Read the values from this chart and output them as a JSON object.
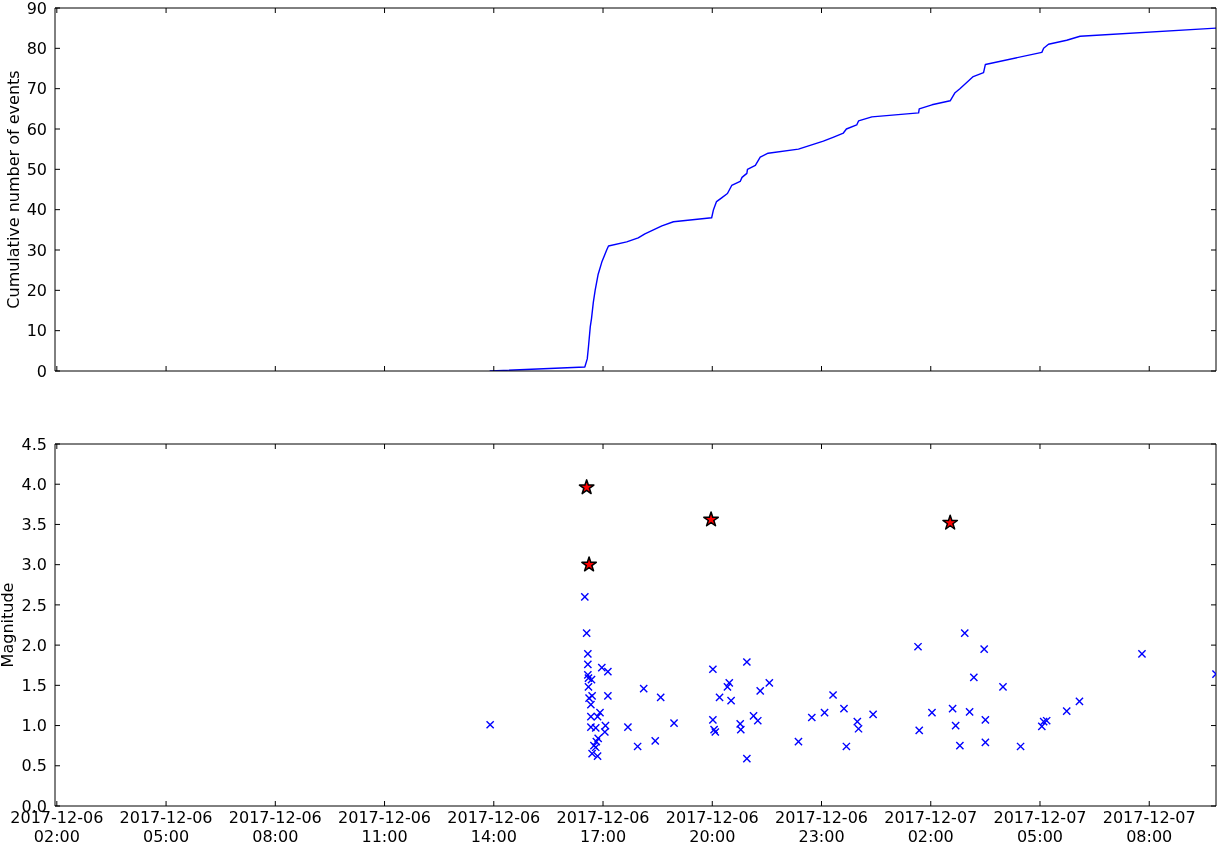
{
  "chart_data": [
    {
      "type": "line",
      "ylabel": "Cumulative number of events",
      "color": "#0000ff",
      "tick_labels": "y",
      "x": [
        "2017-12-06T13:54",
        "2017-12-06T16:30",
        "2017-12-06T16:34",
        "2017-12-06T16:36",
        "2017-12-06T16:39",
        "2017-12-06T16:41",
        "2017-12-06T16:44",
        "2017-12-06T16:47",
        "2017-12-06T16:52",
        "2017-12-06T16:58",
        "2017-12-06T17:06",
        "2017-12-06T17:09",
        "2017-12-06T17:39",
        "2017-12-06T17:58",
        "2017-12-06T18:09",
        "2017-12-06T18:23",
        "2017-12-06T18:37",
        "2017-12-06T18:56",
        "2017-12-06T19:59",
        "2017-12-06T20:02",
        "2017-12-06T20:07",
        "2017-12-06T20:16",
        "2017-12-06T20:25",
        "2017-12-06T20:32",
        "2017-12-06T20:46",
        "2017-12-06T20:49",
        "2017-12-06T20:57",
        "2017-12-06T20:58",
        "2017-12-06T21:11",
        "2017-12-06T21:19",
        "2017-12-06T21:32",
        "2017-12-06T22:22",
        "2017-12-06T23:03",
        "2017-12-06T23:20",
        "2017-12-06T23:36",
        "2017-12-06T23:41",
        "2017-12-06T23:58",
        "2017-12-07T00:01",
        "2017-12-07T00:23",
        "2017-12-07T01:40",
        "2017-12-07T01:41",
        "2017-12-07T02:02",
        "2017-12-07T02:32",
        "2017-12-07T02:40",
        "2017-12-07T02:48",
        "2017-12-07T03:10",
        "2017-12-07T03:27",
        "2017-12-07T03:30",
        "2017-12-07T05:03",
        "2017-12-07T05:06",
        "2017-12-07T05:14",
        "2017-12-07T05:44",
        "2017-12-07T06:06",
        "2017-12-07T09:50"
      ],
      "values": [
        0,
        1,
        3,
        6,
        11,
        13,
        17,
        20,
        24,
        27,
        30,
        31,
        32,
        33,
        34,
        35,
        36,
        37,
        38,
        40,
        42,
        43,
        44,
        46,
        47,
        48,
        49,
        50,
        51,
        53,
        54,
        55,
        57,
        58,
        59,
        60,
        61,
        62,
        63,
        64,
        65,
        66,
        67,
        69,
        70,
        73,
        74,
        76,
        79,
        80,
        81,
        82,
        83,
        85
      ],
      "xlim": [
        "2017-12-06T01:57",
        "2017-12-07T09:50"
      ],
      "xticks": [
        {
          "value": "2017-12-06T02:00",
          "label": null
        },
        {
          "value": "2017-12-06T05:00",
          "label": null
        },
        {
          "value": "2017-12-06T08:00",
          "label": null
        },
        {
          "value": "2017-12-06T11:00",
          "label": null
        },
        {
          "value": "2017-12-06T14:00",
          "label": null
        },
        {
          "value": "2017-12-06T17:00",
          "label": null
        },
        {
          "value": "2017-12-06T20:00",
          "label": null
        },
        {
          "value": "2017-12-06T23:00",
          "label": null
        },
        {
          "value": "2017-12-07T02:00",
          "label": null
        },
        {
          "value": "2017-12-07T05:00",
          "label": null
        },
        {
          "value": "2017-12-07T08:00",
          "label": null
        }
      ],
      "ylim": [
        0,
        90
      ],
      "yticks": [
        0,
        10,
        20,
        30,
        40,
        50,
        60,
        70,
        80,
        90
      ]
    },
    {
      "type": "scatter",
      "ylabel": "Magnitude",
      "series": [
        {
          "color": "#0000ff",
          "marker": "cross",
          "x": [
            "2017-12-06T13:54",
            "2017-12-06T16:30",
            "2017-12-06T16:33",
            "2017-12-06T16:35",
            "2017-12-06T16:35",
            "2017-12-06T16:35",
            "2017-12-06T16:36",
            "2017-12-06T16:36",
            "2017-12-06T16:37",
            "2017-12-06T16:40",
            "2017-12-06T16:40",
            "2017-12-06T16:40",
            "2017-12-06T16:41",
            "2017-12-06T16:42",
            "2017-12-06T16:42",
            "2017-12-06T16:45",
            "2017-12-06T16:48",
            "2017-12-06T16:48",
            "2017-12-06T16:49",
            "2017-12-06T16:51",
            "2017-12-06T16:51",
            "2017-12-06T16:52",
            "2017-12-06T16:55",
            "2017-12-06T16:58",
            "2017-12-06T17:03",
            "2017-12-06T17:04",
            "2017-12-06T17:08",
            "2017-12-06T17:08",
            "2017-12-06T17:41",
            "2017-12-06T17:57",
            "2017-12-06T18:07",
            "2017-12-06T18:26",
            "2017-12-06T18:35",
            "2017-12-06T18:57",
            "2017-12-06T20:01",
            "2017-12-06T20:01",
            "2017-12-06T20:03",
            "2017-12-06T20:05",
            "2017-12-06T20:12",
            "2017-12-06T20:25",
            "2017-12-06T20:28",
            "2017-12-06T20:31",
            "2017-12-06T20:46",
            "2017-12-06T20:47",
            "2017-12-06T20:57",
            "2017-12-06T20:57",
            "2017-12-06T21:08",
            "2017-12-06T21:15",
            "2017-12-06T21:19",
            "2017-12-06T21:34",
            "2017-12-06T22:22",
            "2017-12-06T22:44",
            "2017-12-06T23:05",
            "2017-12-06T23:19",
            "2017-12-06T23:37",
            "2017-12-06T23:41",
            "2017-12-06T23:59",
            "2017-12-07T00:01",
            "2017-12-07T00:25",
            "2017-12-07T01:39",
            "2017-12-07T01:41",
            "2017-12-07T02:02",
            "2017-12-07T02:36",
            "2017-12-07T02:41",
            "2017-12-07T02:48",
            "2017-12-07T02:56",
            "2017-12-07T03:04",
            "2017-12-07T03:11",
            "2017-12-07T03:28",
            "2017-12-07T03:30",
            "2017-12-07T03:30",
            "2017-12-07T03:59",
            "2017-12-07T04:28",
            "2017-12-07T05:03",
            "2017-12-07T05:06",
            "2017-12-07T05:11",
            "2017-12-07T05:44",
            "2017-12-07T06:05",
            "2017-12-07T07:48",
            "2017-12-07T09:50"
          ],
          "values": [
            1.01,
            2.6,
            2.15,
            1.89,
            1.76,
            1.63,
            1.59,
            1.48,
            1.34,
            1.26,
            1.11,
            0.98,
            1.57,
            1.37,
            0.65,
            0.75,
            0.97,
            0.73,
            0.8,
            1.11,
            0.62,
            0.84,
            1.16,
            1.72,
            0.92,
            1.0,
            1.67,
            1.37,
            0.98,
            0.74,
            1.46,
            0.81,
            1.35,
            1.03,
            1.7,
            1.07,
            0.95,
            0.92,
            1.35,
            1.48,
            1.53,
            1.31,
            1.02,
            0.95,
            1.79,
            0.59,
            1.12,
            1.06,
            1.43,
            1.53,
            0.8,
            1.1,
            1.16,
            1.38,
            1.21,
            0.74,
            1.05,
            0.96,
            1.14,
            1.98,
            0.94,
            1.16,
            1.21,
            1.0,
            0.75,
            2.15,
            1.17,
            1.6,
            1.95,
            1.07,
            0.79,
            1.48,
            0.74,
            0.99,
            1.05,
            1.06,
            1.18,
            1.3,
            1.89,
            1.64
          ]
        },
        {
          "color": "#ff0000",
          "marker": "star",
          "x": [
            "2017-12-06T16:33",
            "2017-12-06T16:37",
            "2017-12-06T19:58",
            "2017-12-07T02:32"
          ],
          "values": [
            3.96,
            3.0,
            3.56,
            3.52
          ]
        }
      ],
      "xlim": [
        "2017-12-06T01:57",
        "2017-12-07T09:50"
      ],
      "xticks": [
        {
          "value": "2017-12-06T02:00",
          "label": "2017-12-06 02:00"
        },
        {
          "value": "2017-12-06T05:00",
          "label": "2017-12-06 05:00"
        },
        {
          "value": "2017-12-06T08:00",
          "label": "2017-12-06 08:00"
        },
        {
          "value": "2017-12-06T11:00",
          "label": "2017-12-06 11:00"
        },
        {
          "value": "2017-12-06T14:00",
          "label": "2017-12-06 14:00"
        },
        {
          "value": "2017-12-06T17:00",
          "label": "2017-12-06 17:00"
        },
        {
          "value": "2017-12-06T20:00",
          "label": "2017-12-06 20:00"
        },
        {
          "value": "2017-12-06T23:00",
          "label": "2017-12-06 23:00"
        },
        {
          "value": "2017-12-07T02:00",
          "label": "2017-12-07 02:00"
        },
        {
          "value": "2017-12-07T05:00",
          "label": "2017-12-07 05:00"
        },
        {
          "value": "2017-12-07T08:00",
          "label": "2017-12-07 08:00"
        }
      ],
      "ylim": [
        0,
        4.5
      ],
      "yticks": [
        {
          "value": 0,
          "label": "0.0"
        },
        0.5,
        {
          "value": 1,
          "label": "1.0"
        },
        1.5,
        {
          "value": 2,
          "label": "2.0"
        },
        2.5,
        {
          "value": 3,
          "label": "3.0"
        },
        3.5,
        {
          "value": 4,
          "label": "4.0"
        },
        4.5
      ]
    }
  ]
}
